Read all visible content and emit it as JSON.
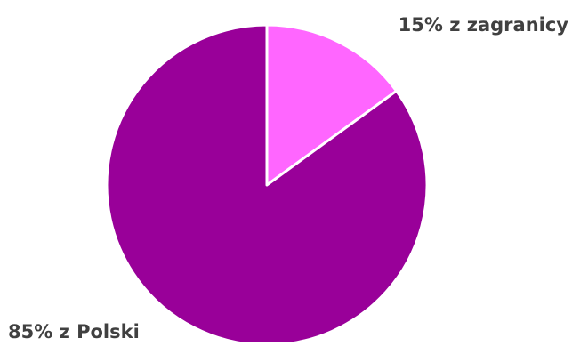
{
  "chart_data": {
    "type": "pie",
    "title": "",
    "start_angle_deg": 0,
    "direction": "clockwise",
    "slices": [
      {
        "label": "15% z zagranicy",
        "value": 15,
        "color": "#ff66ff"
      },
      {
        "label": "85% z Polski",
        "value": 85,
        "color": "#990099"
      }
    ],
    "slice_border_color": "#ffffff",
    "label_color": "#404040",
    "legend": "none"
  }
}
